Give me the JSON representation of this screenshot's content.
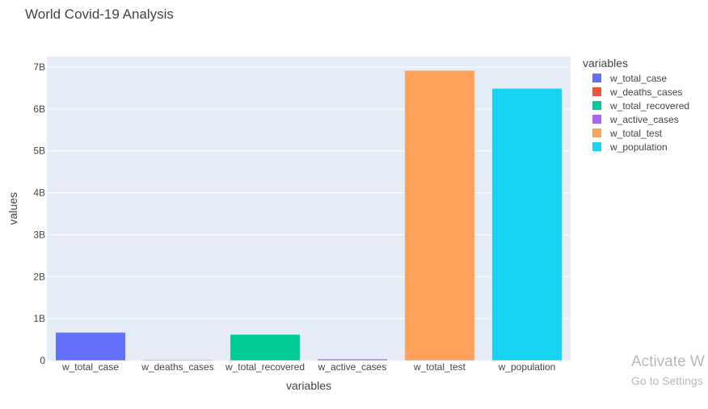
{
  "window": {
    "watermark_title": "Activate W",
    "watermark_subtitle": "Go to Settings"
  },
  "chart_data": {
    "type": "bar",
    "title": "World Covid-19 Analysis",
    "xlabel": "variables",
    "ylabel": "values",
    "legend_title": "variables",
    "legend_position": "right",
    "grid": true,
    "ylim": [
      0,
      7.25
    ],
    "y_unit": "B",
    "y_ticks": [
      {
        "value": 0,
        "label": "0"
      },
      {
        "value": 1,
        "label": "1B"
      },
      {
        "value": 2,
        "label": "2B"
      },
      {
        "value": 3,
        "label": "3B"
      },
      {
        "value": 4,
        "label": "4B"
      },
      {
        "value": 5,
        "label": "5B"
      },
      {
        "value": 6,
        "label": "6B"
      },
      {
        "value": 7,
        "label": "7B"
      }
    ],
    "categories": [
      "w_total_case",
      "w_deaths_cases",
      "w_total_recovered",
      "w_active_cases",
      "w_total_test",
      "w_population"
    ],
    "values": [
      0.67,
      0.014,
      0.62,
      0.035,
      6.92,
      6.49
    ],
    "colors": [
      "#636efa",
      "#ef553b",
      "#00cc96",
      "#ab63fa",
      "#ffa15a",
      "#19d3f3"
    ]
  }
}
